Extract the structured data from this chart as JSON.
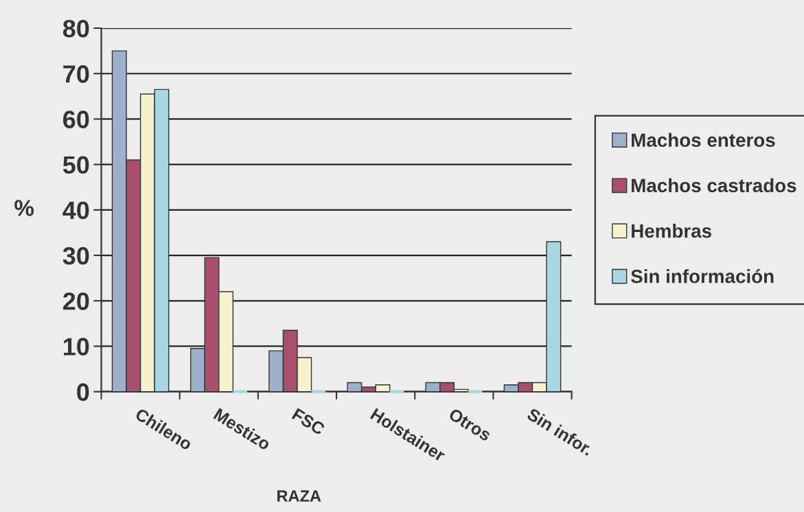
{
  "chart_data": {
    "type": "bar",
    "xlabel": "RAZA",
    "ylabel": "%",
    "categories": [
      "Chileno",
      "Mestizo",
      "FSC",
      "Holstainer",
      "Otros",
      "Sin infor."
    ],
    "series": [
      {
        "name": "Machos enteros",
        "color": "#9fb0cc",
        "values": [
          75,
          9.5,
          9,
          2,
          2,
          1.5
        ]
      },
      {
        "name": "Machos castrados",
        "color": "#a84f70",
        "values": [
          51,
          29.5,
          13.5,
          1,
          2,
          2
        ]
      },
      {
        "name": "Hembras",
        "color": "#f6f2cf",
        "values": [
          65.5,
          22,
          7.5,
          1.5,
          0.5,
          2
        ]
      },
      {
        "name": "Sin información",
        "color": "#a8d6e2",
        "values": [
          66.5,
          0,
          0,
          0,
          0,
          33
        ]
      }
    ],
    "ylim": [
      0,
      80
    ],
    "yticks": [
      0,
      10,
      20,
      30,
      40,
      50,
      60,
      70,
      80
    ],
    "grid": "y",
    "legend": "right"
  }
}
